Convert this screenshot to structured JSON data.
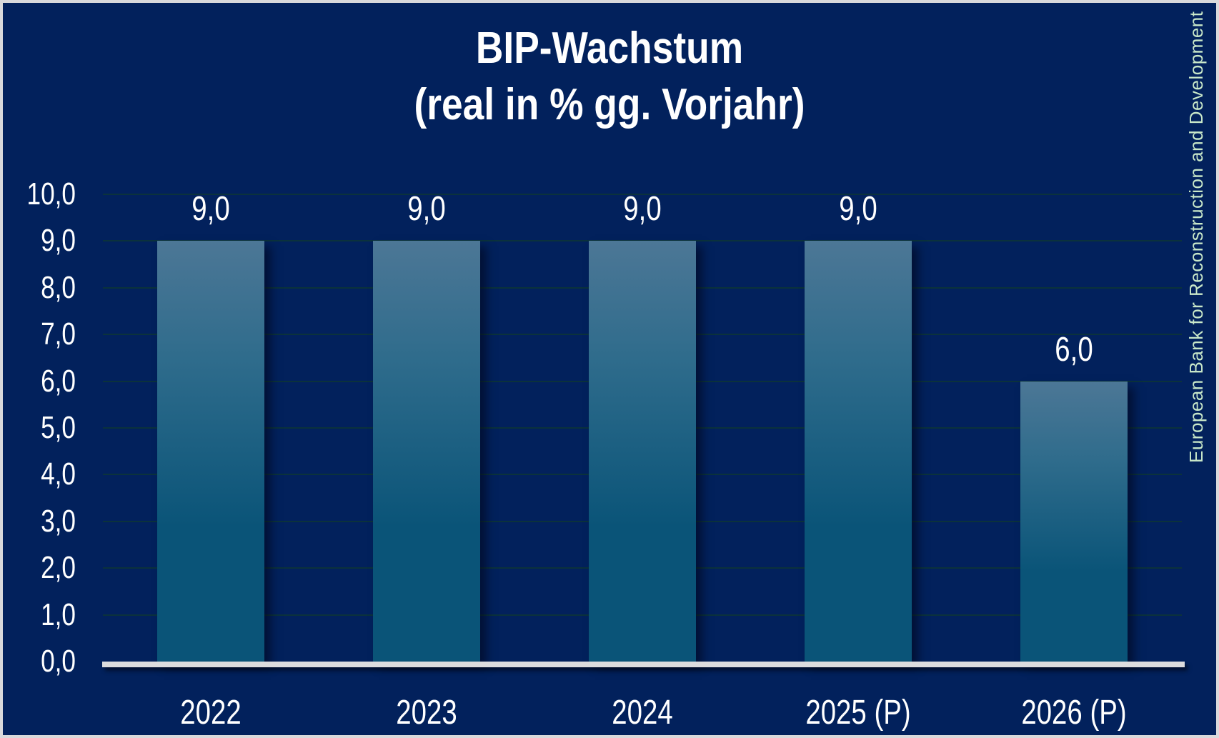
{
  "title": {
    "line1": "BIP-Wachstum",
    "line2": "(real in % gg. Vorjahr)"
  },
  "watermark": "European Bank for Reconstruction and Development",
  "colors": {
    "background": "#02215c",
    "frame": "#d9d9db",
    "bar_top": "#4c7796",
    "bar_mid": "#2f6c8c",
    "bar_bottom": "#0a5478",
    "gridline": "#0b323c",
    "axis": "#dcdcde",
    "text": "#ffffff",
    "watermark_text": "#c9e8c9"
  },
  "chart_data": {
    "type": "bar",
    "title": "BIP-Wachstum (real in % gg. Vorjahr)",
    "categories": [
      "2022",
      "2023",
      "2024",
      "2025 (P)",
      "2026 (P)"
    ],
    "values": [
      9.0,
      9.0,
      9.0,
      9.0,
      6.0
    ],
    "value_labels": [
      "9,0",
      "9,0",
      "9,0",
      "9,0",
      "6,0"
    ],
    "xlabel": "",
    "ylabel": "",
    "ylim": [
      0,
      10
    ],
    "ytick_step": 1,
    "ytick_labels": [
      "0,0",
      "1,0",
      "2,0",
      "3,0",
      "4,0",
      "5,0",
      "6,0",
      "7,0",
      "8,0",
      "9,0",
      "10,0"
    ],
    "grid": true,
    "legend_position": "none",
    "decimal_separator": ",",
    "source_note": "European Bank for Reconstruction and Development"
  }
}
